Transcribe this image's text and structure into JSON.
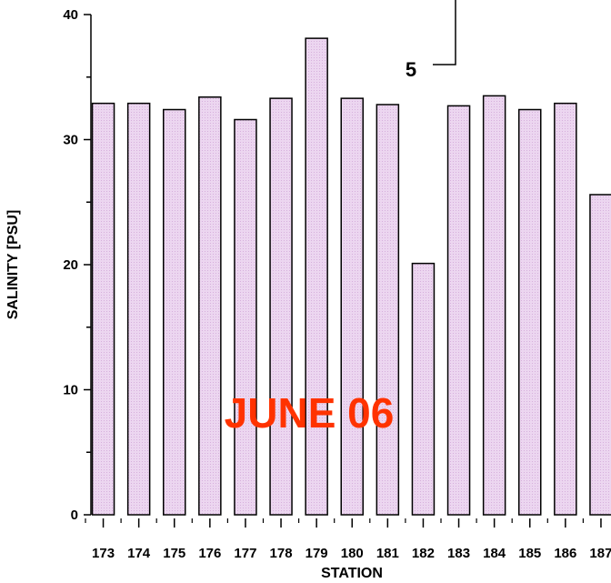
{
  "chart_data": {
    "type": "bar",
    "title": "",
    "xlabel": "STATION",
    "ylabel": "SALINITY [PSU]",
    "ylim": [
      0,
      40
    ],
    "yticks": [
      0,
      10,
      20,
      30,
      40
    ],
    "grid": false,
    "categories": [
      "173",
      "174",
      "175",
      "176",
      "177",
      "178",
      "179",
      "180",
      "181",
      "182",
      "183",
      "184",
      "185",
      "186",
      "187"
    ],
    "values": [
      32.9,
      32.9,
      32.4,
      33.4,
      31.6,
      33.3,
      38.1,
      33.3,
      32.8,
      20.1,
      32.7,
      33.5,
      32.4,
      32.9,
      25.6
    ],
    "annotations": {
      "date_label": "JUNE 06",
      "inset_label": "5"
    },
    "colors": {
      "bar_fill": "#ecd6f0",
      "bar_stroke": "#000000",
      "date_label": "#ff3300"
    }
  }
}
